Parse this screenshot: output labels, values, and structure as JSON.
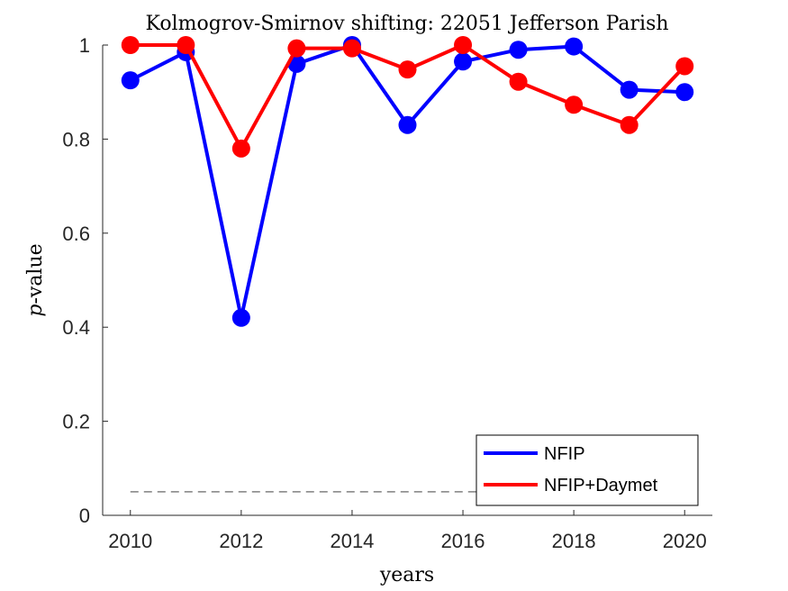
{
  "chart_data": {
    "type": "line",
    "title": "Kolmogrov-Smirnov shifting: 22051 Jefferson Parish",
    "xlabel": "years",
    "ylabel_italic": "p",
    "ylabel_rest": "-value",
    "xlim": [
      2009.5,
      2020.5
    ],
    "ylim": [
      0,
      1
    ],
    "xticks": [
      2010,
      2012,
      2014,
      2016,
      2018,
      2020
    ],
    "yticks": [
      0,
      0.2,
      0.4,
      0.6,
      0.8,
      1
    ],
    "ytick_labels": [
      "0",
      "0.2",
      "0.4",
      "0.6",
      "0.8",
      "1"
    ],
    "x": [
      2010,
      2011,
      2012,
      2013,
      2014,
      2015,
      2016,
      2017,
      2018,
      2019,
      2020
    ],
    "series": [
      {
        "name": "NFIP",
        "color": "#0000ff",
        "values": [
          0.925,
          0.985,
          0.42,
          0.96,
          1.0,
          0.83,
          0.965,
          0.99,
          0.997,
          0.905,
          0.9
        ]
      },
      {
        "name": "NFIP+Daymet",
        "color": "#ff0000",
        "values": [
          1.0,
          1.0,
          0.78,
          0.993,
          0.993,
          0.948,
          1.0,
          0.922,
          0.873,
          0.83,
          0.955
        ]
      }
    ],
    "reference_line": {
      "y": 0.05,
      "x_range": [
        2010,
        2020
      ],
      "style": "dashed",
      "color": "#808080"
    },
    "legend_position": "bottom-right",
    "grid": false
  }
}
